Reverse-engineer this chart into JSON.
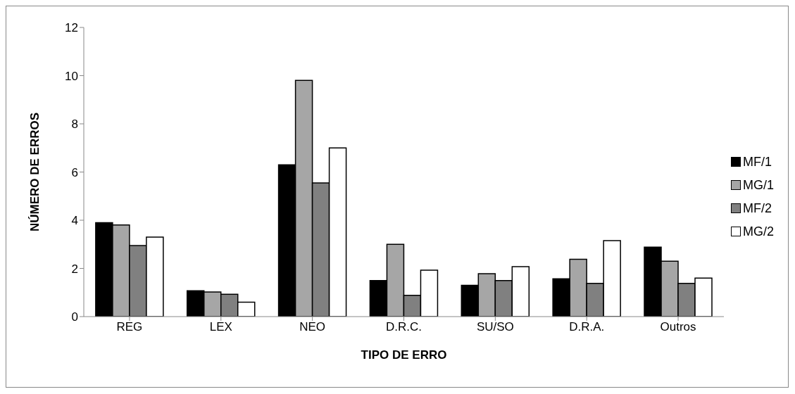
{
  "chart_data": {
    "type": "bar",
    "xlabel": "TIPO DE ERRO",
    "ylabel": "NÚMERO DE ERROS",
    "categories": [
      "REG",
      "LEX",
      "NEO",
      "D.R.C.",
      "SU/SO",
      "D.R.A.",
      "Outros"
    ],
    "series": [
      {
        "name": "MF/1",
        "color": "#000000",
        "values": [
          3.9,
          1.07,
          6.3,
          1.5,
          1.3,
          1.57,
          2.88
        ]
      },
      {
        "name": "MG/1",
        "color": "#a6a6a6",
        "values": [
          3.8,
          1.02,
          9.8,
          3.0,
          1.78,
          2.38,
          2.3
        ]
      },
      {
        "name": "MF/2",
        "color": "#808080",
        "values": [
          2.95,
          0.93,
          5.55,
          0.88,
          1.5,
          1.38,
          1.38
        ]
      },
      {
        "name": "MG/2",
        "color": "#ffffff",
        "values": [
          3.3,
          0.6,
          7.0,
          1.93,
          2.07,
          3.15,
          1.6
        ]
      }
    ],
    "ylim": [
      0,
      12
    ],
    "yticks": [
      0,
      2,
      4,
      6,
      8,
      10,
      12
    ],
    "grid": false,
    "legend": "right"
  }
}
